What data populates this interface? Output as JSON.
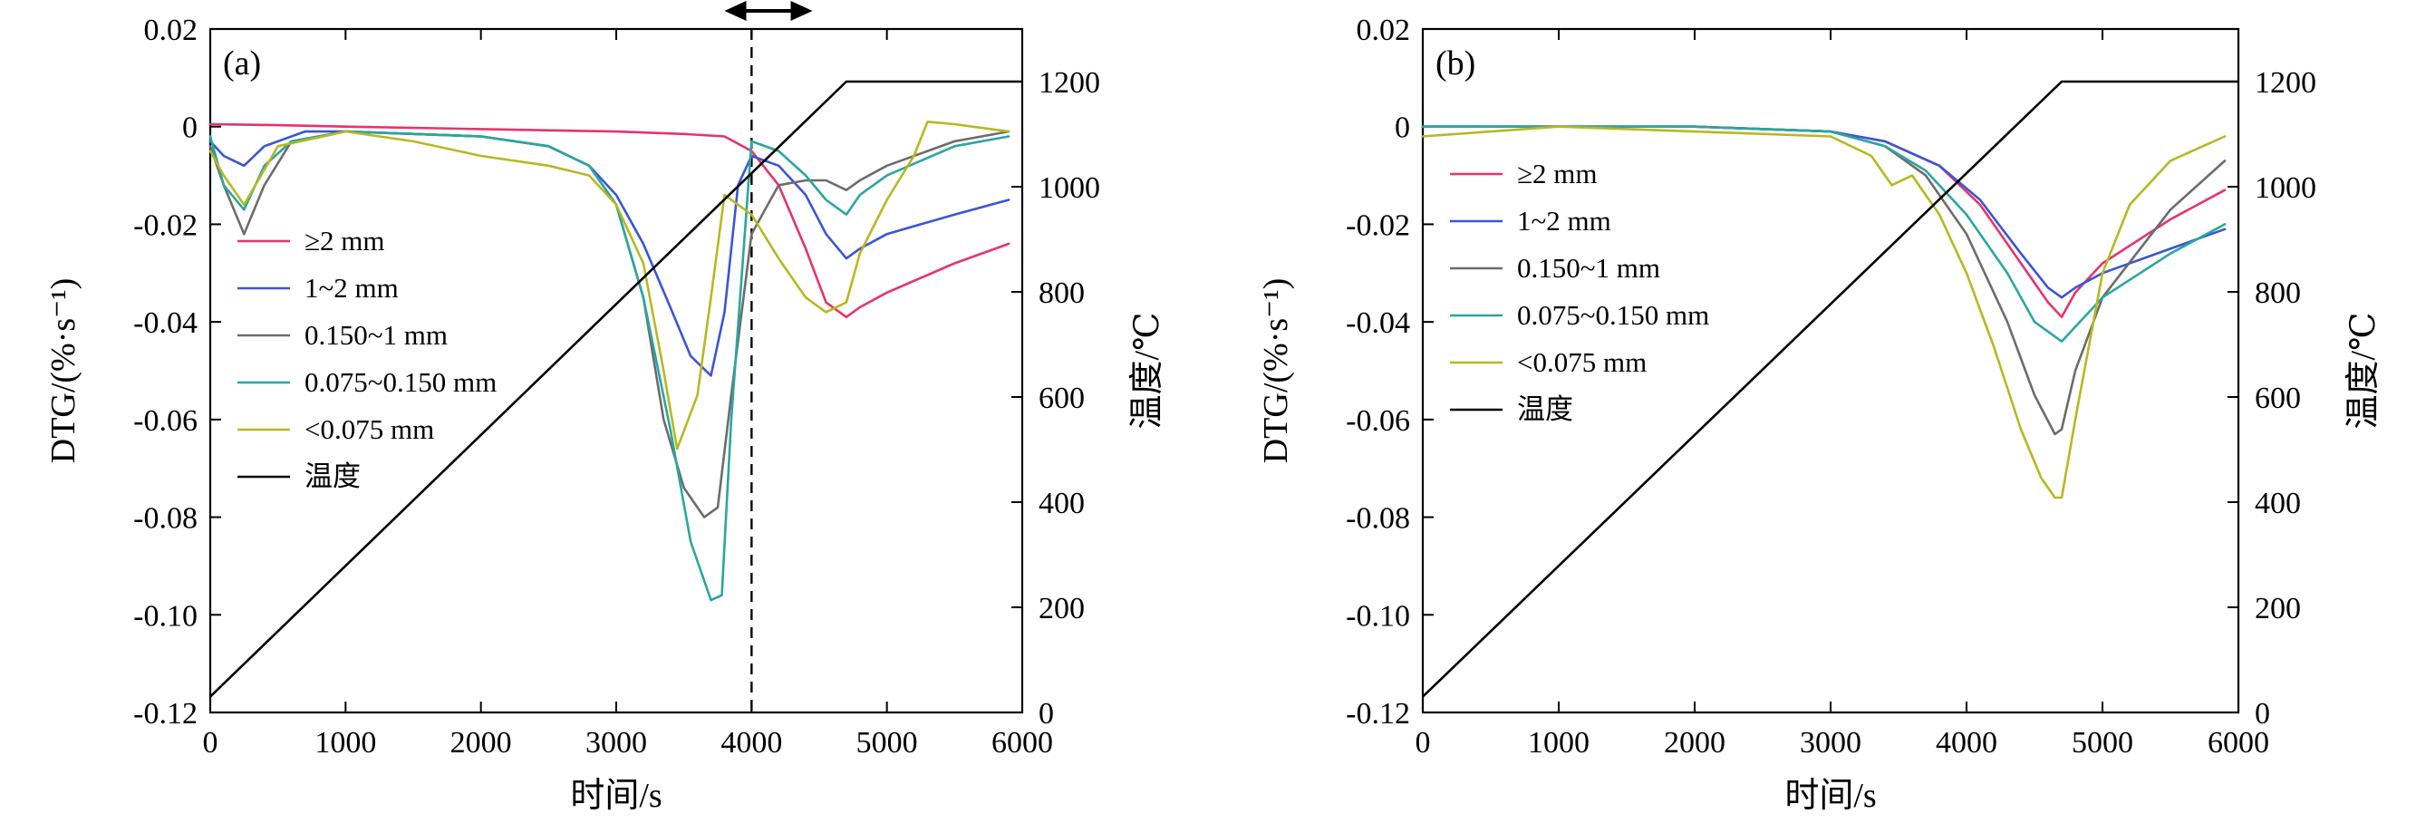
{
  "chart_data": [
    {
      "type": "line",
      "panel_label": "(a)",
      "xlabel": "时间/s",
      "ylabel": "DTG/(%·s⁻¹)",
      "y2label": "温度/℃",
      "xlim": [
        0,
        6000
      ],
      "ylim": [
        -0.12,
        0.02
      ],
      "y2lim": [
        0,
        1300
      ],
      "xticks": [
        "0",
        "1000",
        "2000",
        "3000",
        "4000",
        "5000",
        "6000"
      ],
      "yticks": [
        "0.02",
        "0",
        "-0.02",
        "-0.04",
        "-0.06",
        "-0.08",
        "-0.10",
        "-0.12"
      ],
      "y2ticks": [
        "0",
        "200",
        "400",
        "600",
        "800",
        "1000",
        "1200"
      ],
      "grid": false,
      "legend_position": "left",
      "annotation": {
        "vline_x": 4000,
        "arrow_from_x": 3800,
        "arrow_to_x": 4450
      },
      "series": [
        {
          "name": "≥2 mm",
          "color": "#e8336b",
          "axis": "left",
          "x": [
            0,
            500,
            1000,
            2000,
            3000,
            3500,
            3800,
            4000,
            4200,
            4400,
            4550,
            4700,
            4800,
            5000,
            5500,
            5900
          ],
          "y": [
            0.0005,
            0.0003,
            0,
            -0.0005,
            -0.001,
            -0.0015,
            -0.002,
            -0.005,
            -0.012,
            -0.025,
            -0.036,
            -0.039,
            -0.037,
            -0.034,
            -0.028,
            -0.024
          ]
        },
        {
          "name": "1~2 mm",
          "color": "#3a55d6",
          "axis": "left",
          "x": [
            0,
            100,
            250,
            400,
            700,
            1000,
            2000,
            2500,
            2800,
            3000,
            3200,
            3400,
            3550,
            3700,
            3800,
            3900,
            4000,
            4200,
            4400,
            4550,
            4700,
            4800,
            5000,
            5500,
            5900
          ],
          "y": [
            -0.003,
            -0.006,
            -0.008,
            -0.004,
            -0.001,
            -0.001,
            -0.002,
            -0.004,
            -0.008,
            -0.014,
            -0.024,
            -0.037,
            -0.047,
            -0.051,
            -0.038,
            -0.012,
            -0.006,
            -0.008,
            -0.014,
            -0.022,
            -0.027,
            -0.025,
            -0.022,
            -0.018,
            -0.015
          ]
        },
        {
          "name": "0.150~1 mm",
          "color": "#6c6c6c",
          "axis": "left",
          "x": [
            0,
            100,
            250,
            400,
            600,
            1000,
            2000,
            2500,
            2800,
            3000,
            3200,
            3350,
            3500,
            3650,
            3750,
            3850,
            4000,
            4200,
            4400,
            4550,
            4700,
            4800,
            5000,
            5500,
            5900
          ],
          "y": [
            -0.004,
            -0.012,
            -0.022,
            -0.012,
            -0.003,
            -0.001,
            -0.002,
            -0.004,
            -0.008,
            -0.016,
            -0.035,
            -0.06,
            -0.074,
            -0.08,
            -0.078,
            -0.055,
            -0.022,
            -0.012,
            -0.011,
            -0.011,
            -0.013,
            -0.011,
            -0.008,
            -0.003,
            -0.001
          ]
        },
        {
          "name": "0.075~0.150 mm",
          "color": "#2aa6a0",
          "axis": "left",
          "x": [
            0,
            100,
            250,
            400,
            600,
            1000,
            2000,
            2500,
            2800,
            3000,
            3200,
            3400,
            3550,
            3700,
            3780,
            3850,
            4000,
            4200,
            4400,
            4550,
            4700,
            4800,
            5000,
            5500,
            5900
          ],
          "y": [
            -0.002,
            -0.012,
            -0.017,
            -0.008,
            -0.003,
            -0.001,
            -0.002,
            -0.004,
            -0.008,
            -0.016,
            -0.035,
            -0.062,
            -0.085,
            -0.097,
            -0.096,
            -0.06,
            -0.003,
            -0.005,
            -0.01,
            -0.015,
            -0.018,
            -0.014,
            -0.01,
            -0.004,
            -0.002
          ]
        },
        {
          "name": "<0.075 mm",
          "color": "#b8b820",
          "axis": "left",
          "x": [
            0,
            100,
            250,
            500,
            1000,
            1500,
            2000,
            2500,
            2800,
            3000,
            3200,
            3350,
            3450,
            3600,
            3700,
            3800,
            4000,
            4200,
            4400,
            4550,
            4700,
            4800,
            5000,
            5200,
            5300,
            5500,
            5900
          ],
          "y": [
            -0.005,
            -0.01,
            -0.016,
            -0.004,
            -0.001,
            -0.003,
            -0.006,
            -0.008,
            -0.01,
            -0.016,
            -0.028,
            -0.05,
            -0.066,
            -0.055,
            -0.035,
            -0.014,
            -0.018,
            -0.027,
            -0.035,
            -0.038,
            -0.036,
            -0.026,
            -0.015,
            -0.006,
            0.001,
            0.0005,
            -0.001
          ]
        },
        {
          "name": "温度",
          "color": "#000000",
          "axis": "right",
          "x": [
            0,
            4700,
            6000
          ],
          "y": [
            30,
            1200,
            1200
          ]
        }
      ]
    },
    {
      "type": "line",
      "panel_label": "(b)",
      "xlabel": "时间/s",
      "ylabel": "DTG/(%·s⁻¹)",
      "y2label": "温度/℃",
      "xlim": [
        0,
        6000
      ],
      "ylim": [
        -0.12,
        0.02
      ],
      "y2lim": [
        0,
        1300
      ],
      "xticks": [
        "0",
        "1000",
        "2000",
        "3000",
        "4000",
        "5000",
        "6000"
      ],
      "yticks": [
        "0.02",
        "0",
        "-0.02",
        "-0.04",
        "-0.06",
        "-0.08",
        "-0.10",
        "-0.12"
      ],
      "y2ticks": [
        "0",
        "200",
        "400",
        "600",
        "800",
        "1000",
        "1200"
      ],
      "grid": false,
      "legend_position": "top-left",
      "series": [
        {
          "name": "≥2 mm",
          "color": "#e8336b",
          "axis": "left",
          "x": [
            0,
            1000,
            2000,
            3000,
            3400,
            3800,
            4100,
            4400,
            4600,
            4700,
            4800,
            5000,
            5500,
            5900
          ],
          "y": [
            0,
            0,
            0,
            -0.001,
            -0.003,
            -0.008,
            -0.016,
            -0.028,
            -0.036,
            -0.039,
            -0.034,
            -0.028,
            -0.019,
            -0.013
          ]
        },
        {
          "name": "1~2 mm",
          "color": "#3a55d6",
          "axis": "left",
          "x": [
            0,
            1000,
            2000,
            3000,
            3400,
            3800,
            4100,
            4400,
            4600,
            4700,
            4800,
            5000,
            5500,
            5900
          ],
          "y": [
            0,
            0,
            0,
            -0.001,
            -0.003,
            -0.008,
            -0.015,
            -0.026,
            -0.033,
            -0.035,
            -0.033,
            -0.03,
            -0.025,
            -0.021
          ]
        },
        {
          "name": "0.150~1 mm",
          "color": "#6c6c6c",
          "axis": "left",
          "x": [
            0,
            1000,
            2000,
            3000,
            3400,
            3700,
            4000,
            4300,
            4500,
            4650,
            4700,
            4800,
            5000,
            5500,
            5900
          ],
          "y": [
            0,
            0,
            0,
            -0.001,
            -0.004,
            -0.01,
            -0.022,
            -0.04,
            -0.055,
            -0.063,
            -0.062,
            -0.05,
            -0.035,
            -0.017,
            -0.007
          ]
        },
        {
          "name": "0.075~0.150 mm",
          "color": "#2aa6a0",
          "axis": "left",
          "x": [
            0,
            1000,
            2000,
            3000,
            3400,
            3700,
            4000,
            4300,
            4500,
            4700,
            4800,
            5000,
            5500,
            5900
          ],
          "y": [
            0,
            0,
            0,
            -0.001,
            -0.004,
            -0.009,
            -0.018,
            -0.03,
            -0.04,
            -0.044,
            -0.041,
            -0.035,
            -0.026,
            -0.02
          ]
        },
        {
          "name": "<0.075 mm",
          "color": "#b8b820",
          "axis": "left",
          "x": [
            0,
            1000,
            2000,
            3000,
            3300,
            3450,
            3600,
            3800,
            4000,
            4200,
            4400,
            4550,
            4650,
            4700,
            4800,
            5000,
            5200,
            5500,
            5900
          ],
          "y": [
            -0.002,
            0,
            -0.001,
            -0.002,
            -0.006,
            -0.012,
            -0.01,
            -0.018,
            -0.03,
            -0.045,
            -0.062,
            -0.072,
            -0.076,
            -0.076,
            -0.06,
            -0.03,
            -0.016,
            -0.007,
            -0.002
          ]
        },
        {
          "name": "温度",
          "color": "#000000",
          "axis": "right",
          "x": [
            0,
            4700,
            6000
          ],
          "y": [
            30,
            1200,
            1200
          ]
        }
      ]
    }
  ]
}
